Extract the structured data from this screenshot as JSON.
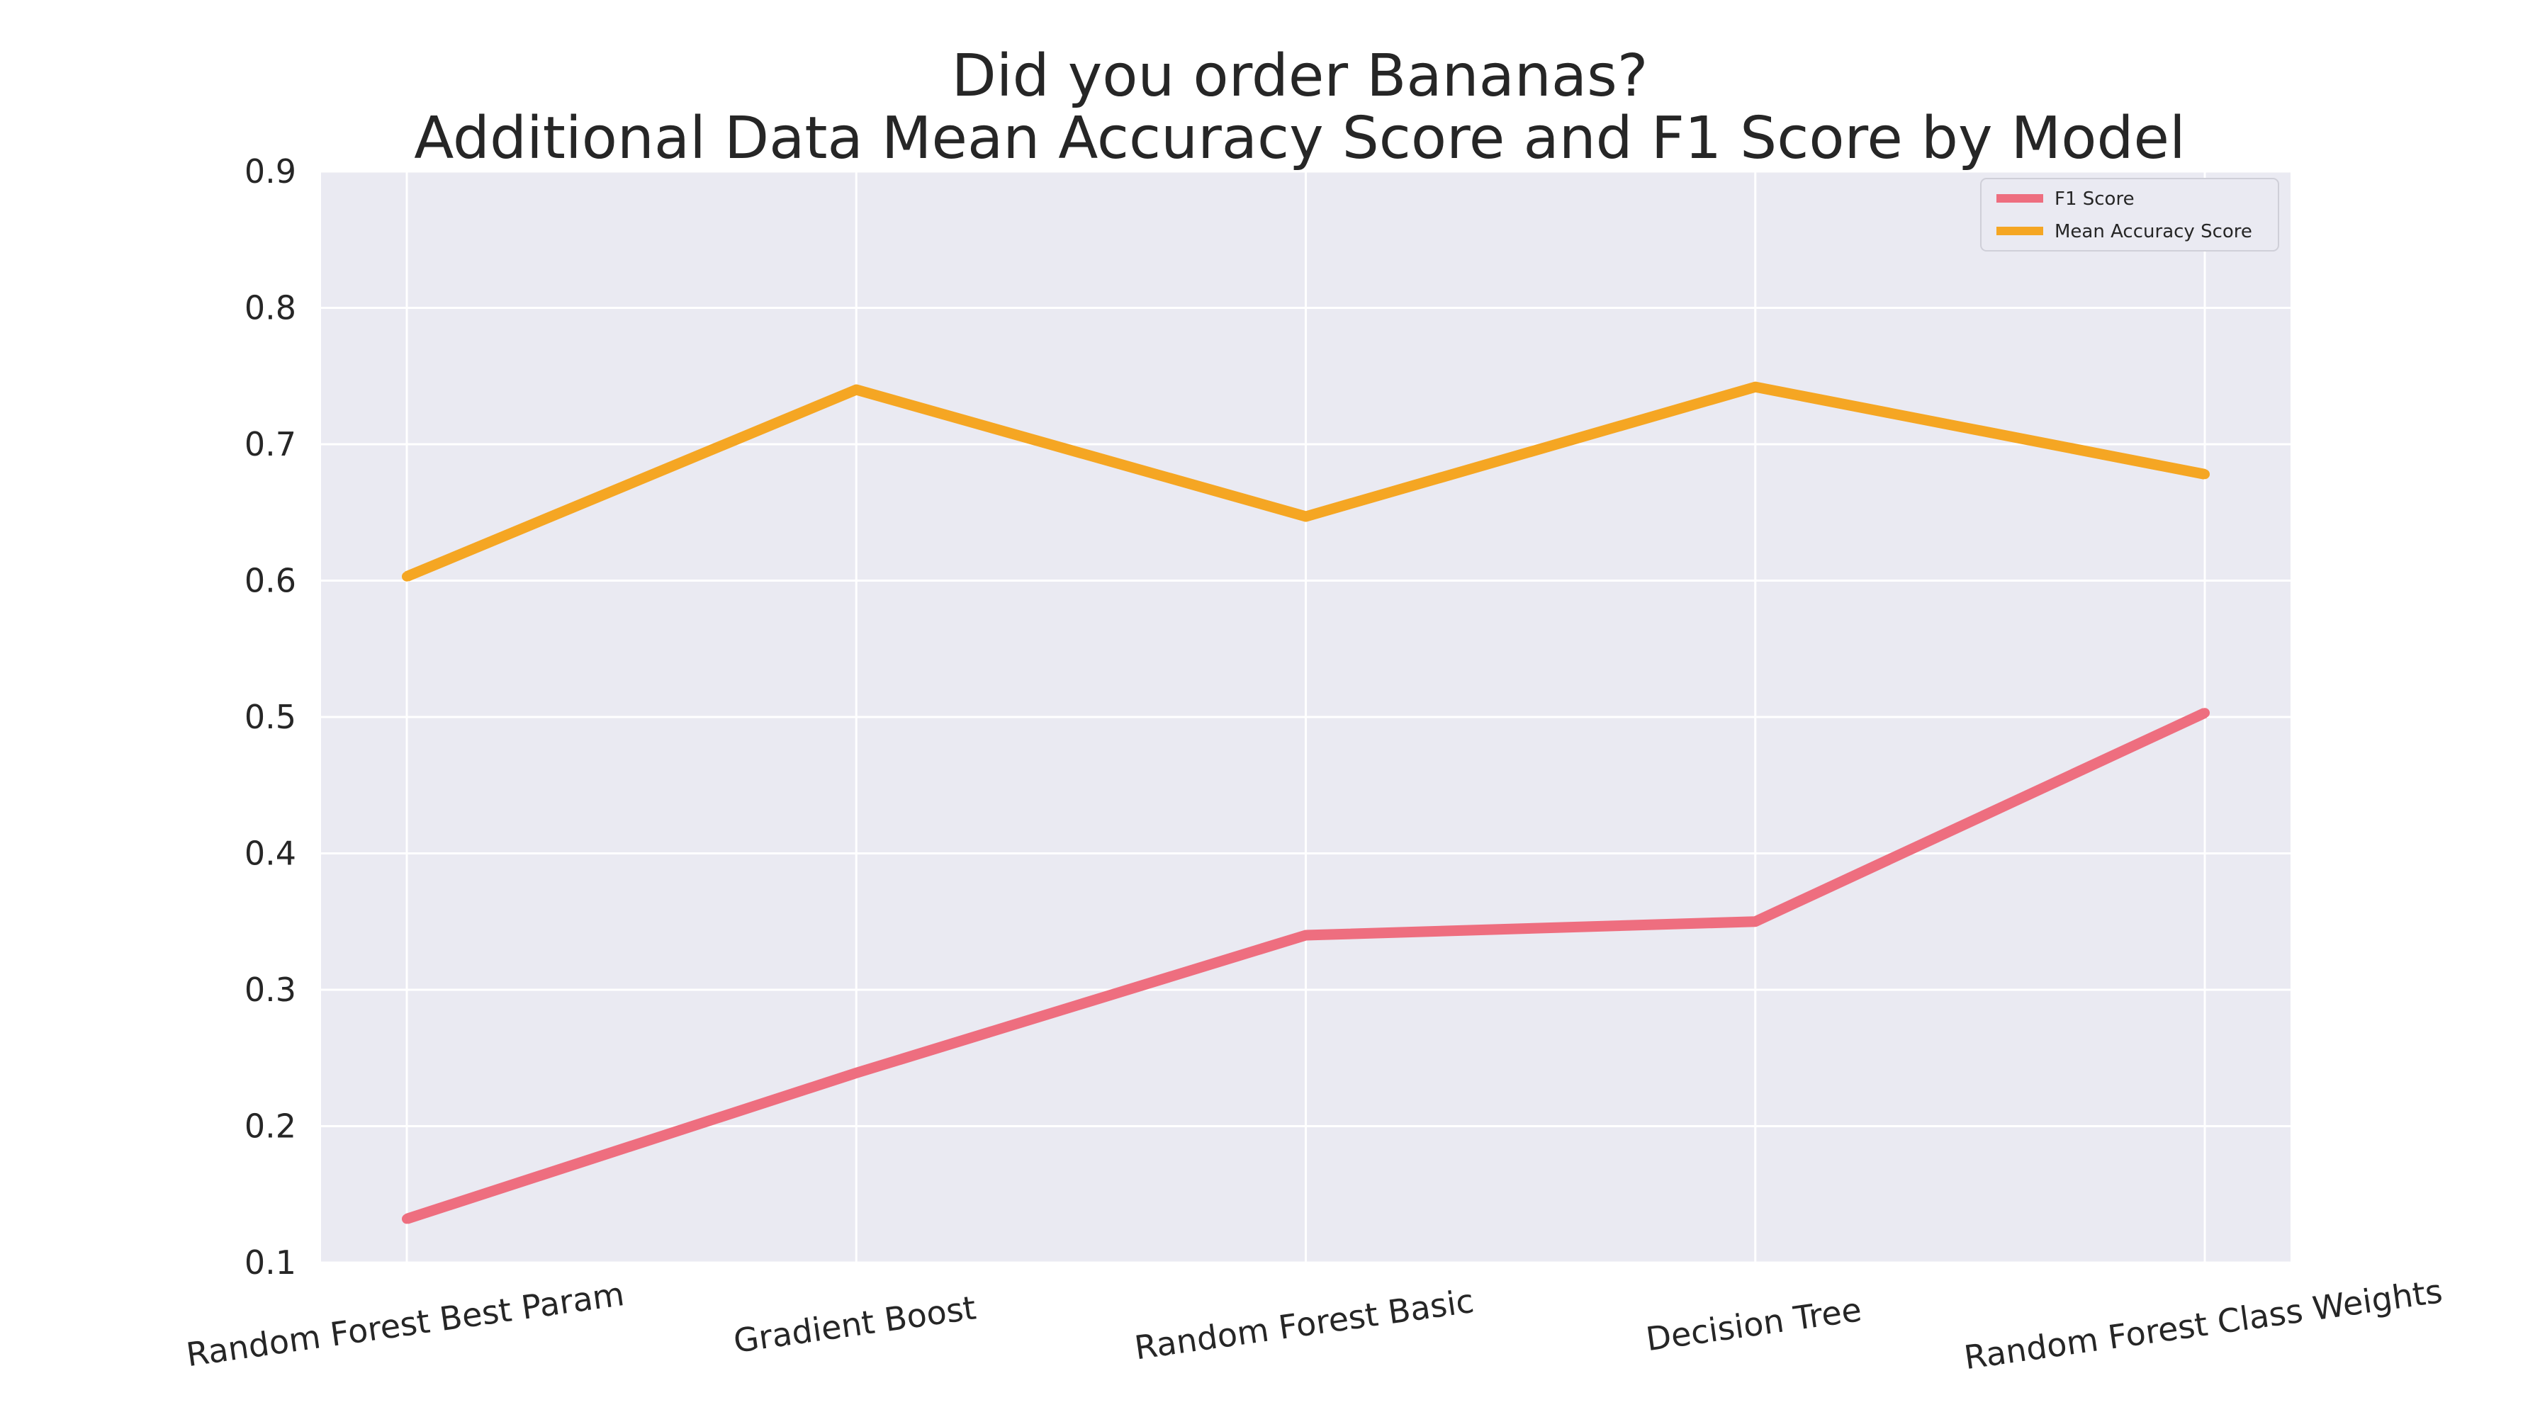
{
  "chart_data": {
    "type": "line",
    "title": "Did you order Bananas?",
    "subtitle": "Additional Data Mean Accuracy Score and F1 Score by Model",
    "xlabel": "",
    "ylabel": "",
    "categories": [
      "Random Forest Best Param",
      "Gradient Boost",
      "Random Forest Basic",
      "Decision Tree",
      "Random Forest Class Weights"
    ],
    "yticks": [
      0.1,
      0.2,
      0.3,
      0.4,
      0.5,
      0.6,
      0.7,
      0.8,
      0.9
    ],
    "ylim": [
      0.1,
      0.9
    ],
    "grid": true,
    "legend_position": "top-right",
    "series": [
      {
        "name": "F1 Score",
        "color": "#ee6e7f",
        "values": [
          0.132,
          0.239,
          0.34,
          0.35,
          0.503
        ]
      },
      {
        "name": "Mean Accuracy Score",
        "color": "#f5a623",
        "values": [
          0.603,
          0.74,
          0.647,
          0.742,
          0.678
        ]
      }
    ],
    "plot_background": "#eaeaf2",
    "grid_color": "#ffffff"
  }
}
